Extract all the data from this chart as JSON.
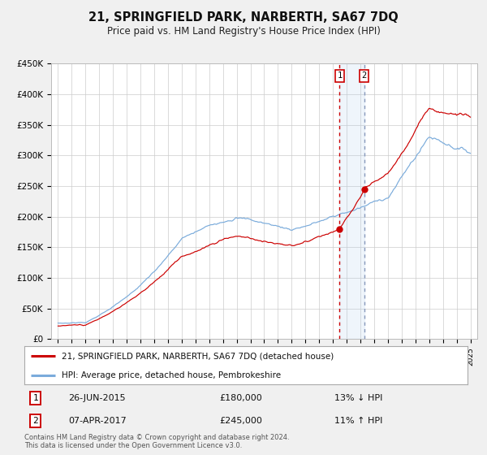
{
  "title": "21, SPRINGFIELD PARK, NARBERTH, SA67 7DQ",
  "subtitle": "Price paid vs. HM Land Registry's House Price Index (HPI)",
  "red_label": "21, SPRINGFIELD PARK, NARBERTH, SA67 7DQ (detached house)",
  "blue_label": "HPI: Average price, detached house, Pembrokeshire",
  "transaction1_date": "26-JUN-2015",
  "transaction1_price": 180000,
  "transaction1_note": "13% ↓ HPI",
  "transaction2_date": "07-APR-2017",
  "transaction2_price": 245000,
  "transaction2_note": "11% ↑ HPI",
  "footer": "Contains HM Land Registry data © Crown copyright and database right 2024.\nThis data is licensed under the Open Government Licence v3.0.",
  "red_color": "#cc0000",
  "blue_color": "#7aabdb",
  "bg_color": "#f0f0f0",
  "plot_bg": "#ffffff",
  "grid_color": "#cccccc",
  "ylim": [
    0,
    450000
  ],
  "yticks": [
    0,
    50000,
    100000,
    150000,
    200000,
    250000,
    300000,
    350000,
    400000,
    450000
  ],
  "xstart_year": 1995,
  "xend_year": 2025,
  "transaction1_year": 2015.49,
  "transaction2_year": 2017.27
}
